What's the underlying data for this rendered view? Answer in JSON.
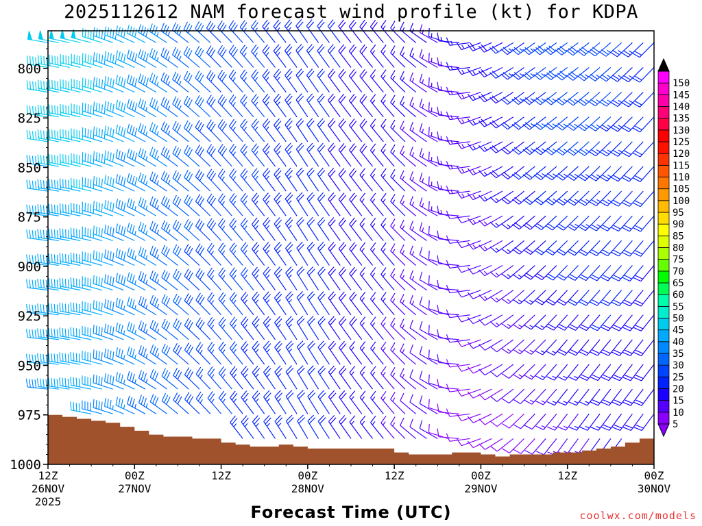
{
  "chart_data": {
    "type": "wind-barb-profile",
    "title": "2025112612 NAM forecast wind profile (kt) for KDPA",
    "xlabel": "Forecast Time (UTC)",
    "ylabel": "",
    "credit": "coolwx.com/models",
    "ylim": [
      1000,
      781
    ],
    "yticks": [
      "800",
      "825",
      "850",
      "875",
      "900",
      "925",
      "950",
      "975",
      "1000"
    ],
    "xlim_hours": [
      0,
      84
    ],
    "xticks": [
      {
        "hour": 0,
        "l1": "12Z",
        "l2": "26NOV",
        "l3": "2025"
      },
      {
        "hour": 12,
        "l1": "00Z",
        "l2": "27NOV",
        "l3": ""
      },
      {
        "hour": 24,
        "l1": "12Z",
        "l2": "",
        "l3": ""
      },
      {
        "hour": 36,
        "l1": "00Z",
        "l2": "28NOV",
        "l3": ""
      },
      {
        "hour": 48,
        "l1": "12Z",
        "l2": "",
        "l3": ""
      },
      {
        "hour": 60,
        "l1": "00Z",
        "l2": "29NOV",
        "l3": ""
      },
      {
        "hour": 72,
        "l1": "12Z",
        "l2": "",
        "l3": ""
      },
      {
        "hour": 84,
        "l1": "00Z",
        "l2": "30NOV",
        "l3": ""
      }
    ],
    "colorbar": {
      "levels": [
        "5",
        "10",
        "15",
        "20",
        "25",
        "30",
        "35",
        "40",
        "45",
        "50",
        "55",
        "60",
        "65",
        "70",
        "75",
        "80",
        "85",
        "90",
        "95",
        "100",
        "105",
        "110",
        "115",
        "120",
        "125",
        "130",
        "135",
        "140",
        "145",
        "150"
      ],
      "colors": [
        "#8a00ff",
        "#5500ff",
        "#1a00ff",
        "#0022ff",
        "#0044ff",
        "#0066ff",
        "#0088ff",
        "#00aaff",
        "#00ccee",
        "#00eecc",
        "#00ffaa",
        "#00ff55",
        "#00ff00",
        "#66ff00",
        "#aaff00",
        "#ddff00",
        "#ffff00",
        "#ffdd00",
        "#ffbb00",
        "#ff9900",
        "#ff7700",
        "#ff5500",
        "#ff3300",
        "#ff1100",
        "#ff0000",
        "#ff0044",
        "#ff0077",
        "#ff00aa",
        "#ff00cc",
        "#ff00ff"
      ]
    },
    "surface_pressure": [
      {
        "hour": 0,
        "mb": 975
      },
      {
        "hour": 2,
        "mb": 976
      },
      {
        "hour": 4,
        "mb": 977
      },
      {
        "hour": 6,
        "mb": 978
      },
      {
        "hour": 8,
        "mb": 979
      },
      {
        "hour": 10,
        "mb": 981
      },
      {
        "hour": 12,
        "mb": 983
      },
      {
        "hour": 14,
        "mb": 985
      },
      {
        "hour": 16,
        "mb": 986
      },
      {
        "hour": 18,
        "mb": 986
      },
      {
        "hour": 20,
        "mb": 987
      },
      {
        "hour": 24,
        "mb": 989
      },
      {
        "hour": 26,
        "mb": 990
      },
      {
        "hour": 28,
        "mb": 991
      },
      {
        "hour": 30,
        "mb": 991
      },
      {
        "hour": 32,
        "mb": 990
      },
      {
        "hour": 34,
        "mb": 991
      },
      {
        "hour": 36,
        "mb": 992
      },
      {
        "hour": 40,
        "mb": 992
      },
      {
        "hour": 44,
        "mb": 992
      },
      {
        "hour": 48,
        "mb": 994
      },
      {
        "hour": 50,
        "mb": 995
      },
      {
        "hour": 54,
        "mb": 995
      },
      {
        "hour": 56,
        "mb": 994
      },
      {
        "hour": 60,
        "mb": 995
      },
      {
        "hour": 62,
        "mb": 996
      },
      {
        "hour": 64,
        "mb": 995
      },
      {
        "hour": 68,
        "mb": 995
      },
      {
        "hour": 70,
        "mb": 994
      },
      {
        "hour": 72,
        "mb": 994
      },
      {
        "hour": 74,
        "mb": 993
      },
      {
        "hour": 76,
        "mb": 992
      },
      {
        "hour": 78,
        "mb": 991
      },
      {
        "hour": 80,
        "mb": 989
      },
      {
        "hour": 82,
        "mb": 987
      },
      {
        "hour": 84,
        "mb": 987
      }
    ],
    "wind_keyframes": [
      {
        "hour": 0,
        "low_dir": 275,
        "low_spd": 38,
        "high_dir": 280,
        "high_spd": 48
      },
      {
        "hour": 6,
        "low_dir": 280,
        "low_spd": 40,
        "high_dir": 285,
        "high_spd": 48
      },
      {
        "hour": 12,
        "low_dir": 295,
        "low_spd": 35,
        "high_dir": 295,
        "high_spd": 42
      },
      {
        "hour": 18,
        "low_dir": 310,
        "low_spd": 30,
        "high_dir": 305,
        "high_spd": 35
      },
      {
        "hour": 24,
        "low_dir": 320,
        "low_spd": 25,
        "high_dir": 315,
        "high_spd": 30
      },
      {
        "hour": 36,
        "low_dir": 330,
        "low_spd": 22,
        "high_dir": 325,
        "high_spd": 22
      },
      {
        "hour": 48,
        "low_dir": 320,
        "low_spd": 14,
        "high_dir": 320,
        "high_spd": 17
      },
      {
        "hour": 54,
        "low_dir": 300,
        "low_spd": 10,
        "high_dir": 300,
        "high_spd": 15
      },
      {
        "hour": 60,
        "low_dir": 250,
        "low_spd": 7,
        "high_dir": 250,
        "high_spd": 16
      },
      {
        "hour": 66,
        "low_dir": 225,
        "low_spd": 8,
        "high_dir": 235,
        "high_spd": 24
      },
      {
        "hour": 72,
        "low_dir": 215,
        "low_spd": 12,
        "high_dir": 235,
        "high_spd": 30
      },
      {
        "hour": 78,
        "low_dir": 215,
        "low_spd": 16,
        "high_dir": 230,
        "high_spd": 28
      },
      {
        "hour": 84,
        "low_dir": 215,
        "low_spd": 18,
        "high_dir": 225,
        "high_spd": 22
      }
    ]
  }
}
